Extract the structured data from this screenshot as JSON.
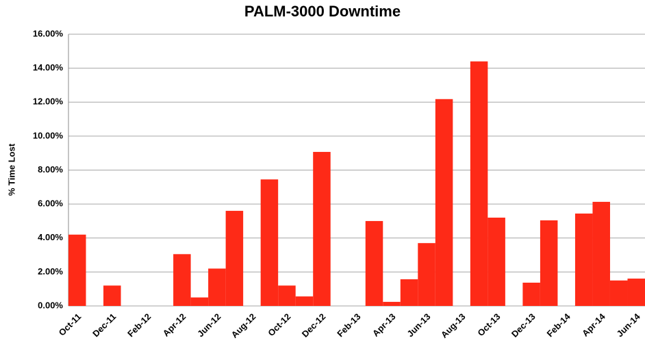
{
  "chart_data": {
    "type": "bar",
    "title": "PALM-3000 Downtime",
    "y_label": "% Time Lost",
    "categories": [
      "Oct-11",
      null,
      "Dec-11",
      null,
      "Feb-12",
      null,
      "Apr-12",
      null,
      "Jun-12",
      null,
      "Aug-12",
      null,
      "Oct-12",
      null,
      "Dec-12",
      null,
      "Feb-13",
      null,
      "Apr-13",
      null,
      "Jun-13",
      null,
      "Aug-13",
      null,
      "Oct-13",
      null,
      "Dec-13",
      null,
      "Feb-14",
      null,
      "Apr-14",
      null,
      "Jun-14"
    ],
    "values": [
      4.2,
      0,
      1.2,
      0,
      0,
      0,
      3.05,
      0.5,
      2.2,
      5.6,
      0,
      7.45,
      1.2,
      0.56,
      9.07,
      0,
      0,
      5.0,
      0.24,
      1.57,
      3.7,
      12.18,
      0,
      14.4,
      5.2,
      0,
      1.37,
      5.04,
      0,
      5.44,
      6.13,
      1.5,
      1.61
    ],
    "color": "#fe2a17",
    "ylim": [
      0,
      16
    ],
    "yticks": [
      {
        "value": 0,
        "label": "0.00%"
      },
      {
        "value": 2,
        "label": "2.00%"
      },
      {
        "value": 4,
        "label": "4.00%"
      },
      {
        "value": 6,
        "label": "6.00%"
      },
      {
        "value": 8,
        "label": "8.00%"
      },
      {
        "value": 10,
        "label": "10.00%"
      },
      {
        "value": 12,
        "label": "12.00%"
      },
      {
        "value": 14,
        "label": "14.00%"
      },
      {
        "value": 16,
        "label": "16.00%"
      }
    ],
    "grid": true
  }
}
